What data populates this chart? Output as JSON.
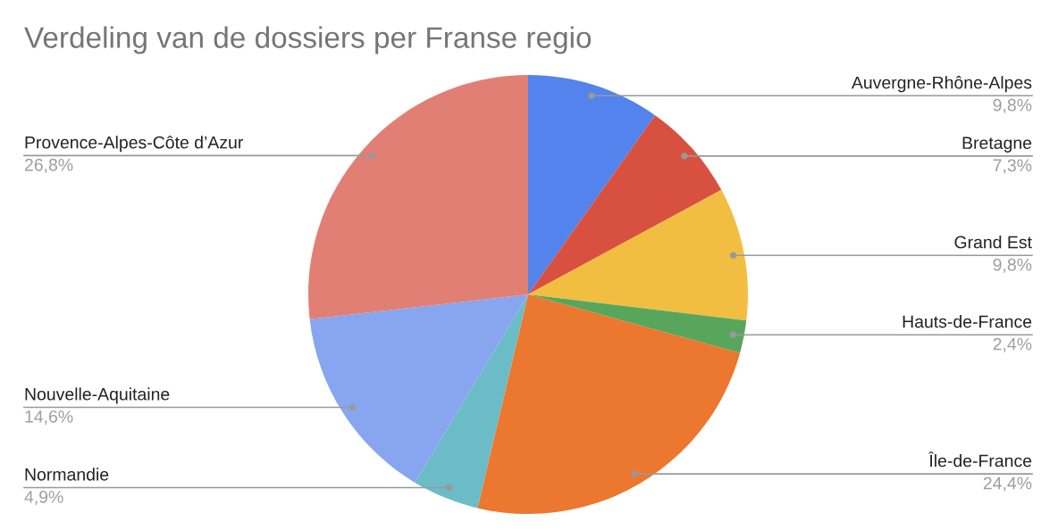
{
  "chart_data": {
    "type": "pie",
    "title": "Verdeling van de dossiers per Franse regio",
    "categories": [
      "Auvergne-Rhône-Alpes",
      "Bretagne",
      "Grand Est",
      "Hauts-de-France",
      "Île-de-France",
      "Normandie",
      "Nouvelle-Aquitaine",
      "Provence-Alpes-Côte d’Azur"
    ],
    "values": [
      9.8,
      7.3,
      9.8,
      2.4,
      24.4,
      4.9,
      14.6,
      26.8
    ],
    "colors": [
      "#5383ec",
      "#d85140",
      "#f1be42",
      "#58a65c",
      "#ec772e",
      "#6bbcc6",
      "#87a6ef",
      "#e17f74"
    ],
    "value_labels": [
      "9,8%",
      "7,3%",
      "9,8%",
      "2,4%",
      "24,4%",
      "4,9%",
      "14,6%",
      "26,8%"
    ]
  }
}
